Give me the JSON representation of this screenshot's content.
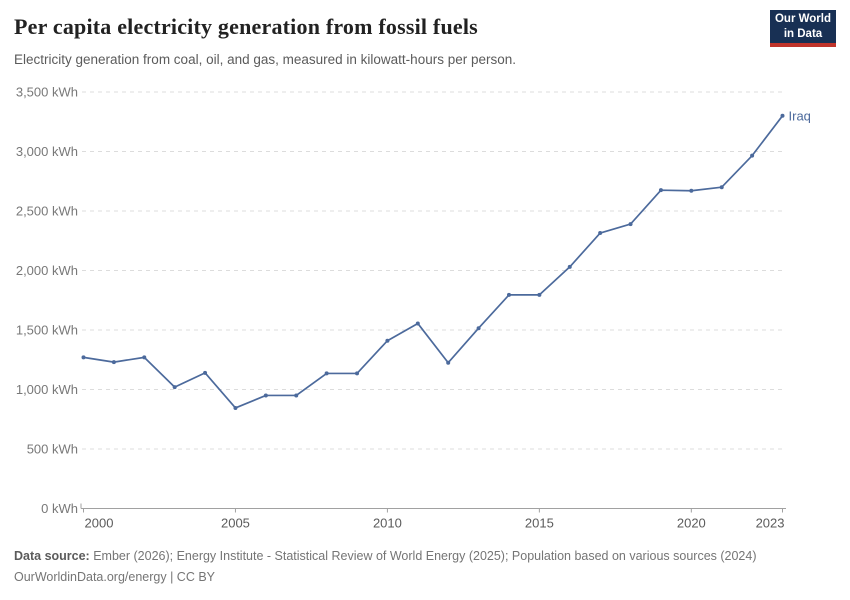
{
  "header": {
    "title": "Per capita electricity generation from fossil fuels",
    "subtitle": "Electricity generation from coal, oil, and gas, measured in kilowatt-hours per person.",
    "logo": {
      "line1": "Our World",
      "line2": "in Data"
    }
  },
  "chart_data": {
    "type": "line",
    "title": "Per capita electricity generation from fossil fuels",
    "xlabel": "",
    "ylabel": "kWh",
    "xlim": [
      2000,
      2023
    ],
    "ylim": [
      0,
      3500
    ],
    "grid": "dashed-horizontal",
    "legend_position": "end-of-line-label",
    "series": [
      {
        "name": "Iraq",
        "color": "#4C6A9C",
        "x": [
          2000,
          2001,
          2002,
          2003,
          2004,
          2005,
          2006,
          2007,
          2008,
          2009,
          2010,
          2011,
          2012,
          2013,
          2014,
          2015,
          2016,
          2017,
          2018,
          2019,
          2020,
          2021,
          2022,
          2023
        ],
        "values": [
          1270,
          1230,
          1270,
          1020,
          1140,
          845,
          950,
          950,
          1135,
          1135,
          1410,
          1555,
          1225,
          1515,
          1795,
          1795,
          2030,
          2315,
          2390,
          2675,
          2670,
          2700,
          2965,
          3300
        ]
      }
    ],
    "y_ticks": [
      {
        "value": 0,
        "label": "0 kWh"
      },
      {
        "value": 500,
        "label": "500 kWh"
      },
      {
        "value": 1000,
        "label": "1,000 kWh"
      },
      {
        "value": 1500,
        "label": "1,500 kWh"
      },
      {
        "value": 2000,
        "label": "2,000 kWh"
      },
      {
        "value": 2500,
        "label": "2,500 kWh"
      },
      {
        "value": 3000,
        "label": "3,000 kWh"
      },
      {
        "value": 3500,
        "label": "3,500 kWh"
      }
    ],
    "x_ticks": [
      {
        "value": 2000,
        "label": "2000"
      },
      {
        "value": 2005,
        "label": "2005"
      },
      {
        "value": 2010,
        "label": "2010"
      },
      {
        "value": 2015,
        "label": "2015"
      },
      {
        "value": 2020,
        "label": "2020"
      },
      {
        "value": 2023,
        "label": "2023"
      }
    ]
  },
  "footer": {
    "source_label": "Data source:",
    "source_text": " Ember (2026); Energy Institute - Statistical Review of World Energy (2025); Population based on various sources (2024)",
    "link_line": "OurWorldinData.org/energy | CC BY"
  },
  "colors": {
    "line": "#4C6A9C",
    "gridline": "#dcdcdc",
    "axis": "#a1a1a1",
    "logo_bg": "#183054",
    "logo_accent": "#c0342b"
  }
}
